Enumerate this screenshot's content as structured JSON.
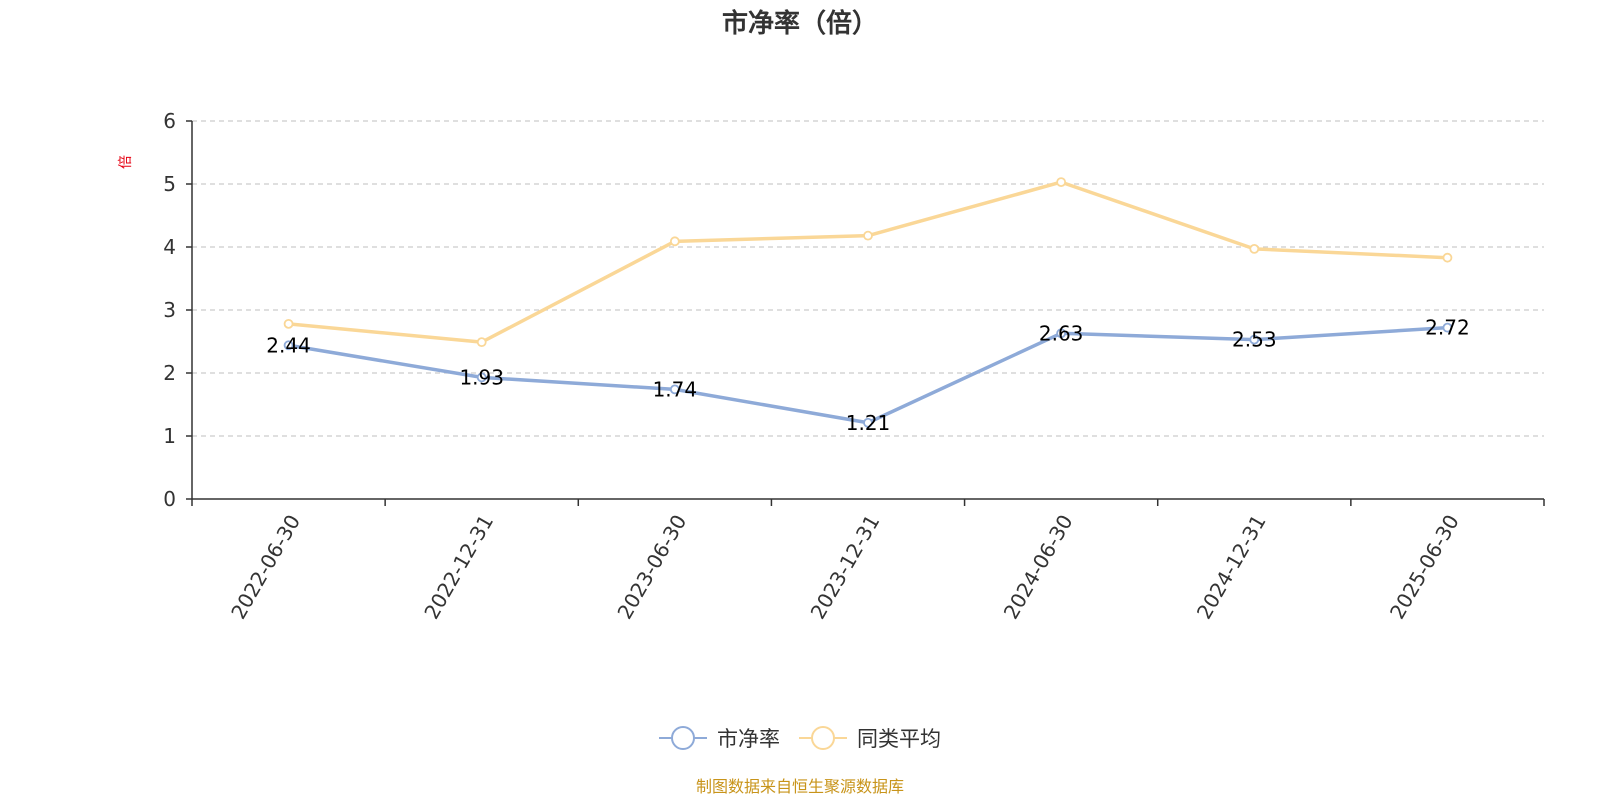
{
  "chart_data": {
    "type": "line",
    "title": "市净率（倍）",
    "ylabel": "倍",
    "ylim": [
      0,
      6
    ],
    "yticks": [
      0,
      1,
      2,
      3,
      4,
      5,
      6
    ],
    "categories": [
      "2022-06-30",
      "2022-12-31",
      "2023-06-30",
      "2023-12-31",
      "2024-06-30",
      "2024-12-31",
      "2025-06-30"
    ],
    "series": [
      {
        "name": "市净率",
        "color": "#8eaad8",
        "values": [
          2.44,
          1.93,
          1.74,
          1.21,
          2.63,
          2.53,
          2.72
        ],
        "show_labels": true
      },
      {
        "name": "同类平均",
        "color": "#fad797",
        "values": [
          2.78,
          2.49,
          4.09,
          4.18,
          5.03,
          3.97,
          3.83
        ],
        "show_labels": false
      }
    ],
    "grid": true,
    "legend_position": "bottom-center"
  },
  "source_note": "制图数据来自恒生聚源数据库"
}
